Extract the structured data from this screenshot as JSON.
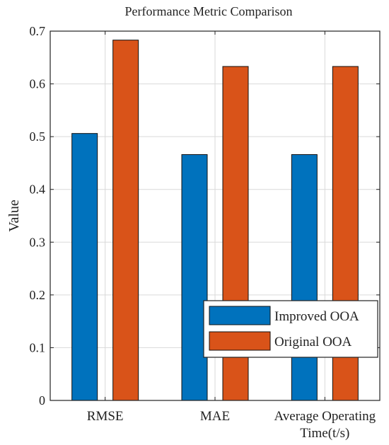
{
  "chart_data": {
    "type": "bar",
    "title": "Performance Metric Comparison",
    "xlabel": "",
    "ylabel": "Value",
    "categories": [
      [
        "RMSE"
      ],
      [
        "MAE"
      ],
      [
        "Average Operating",
        "Time(t/s)"
      ]
    ],
    "series": [
      {
        "name": "Improved OOA",
        "values": [
          0.506,
          0.466,
          0.466
        ],
        "color": "#0072BD"
      },
      {
        "name": "Original OOA",
        "values": [
          0.683,
          0.633,
          0.633
        ],
        "color": "#D95319"
      }
    ],
    "ylim": [
      0,
      0.7
    ],
    "yticks": [
      "0",
      "0.1",
      "0.2",
      "0.3",
      "0.4",
      "0.5",
      "0.6",
      "0.7"
    ],
    "grid": true,
    "legend_position": "bottom-right"
  }
}
